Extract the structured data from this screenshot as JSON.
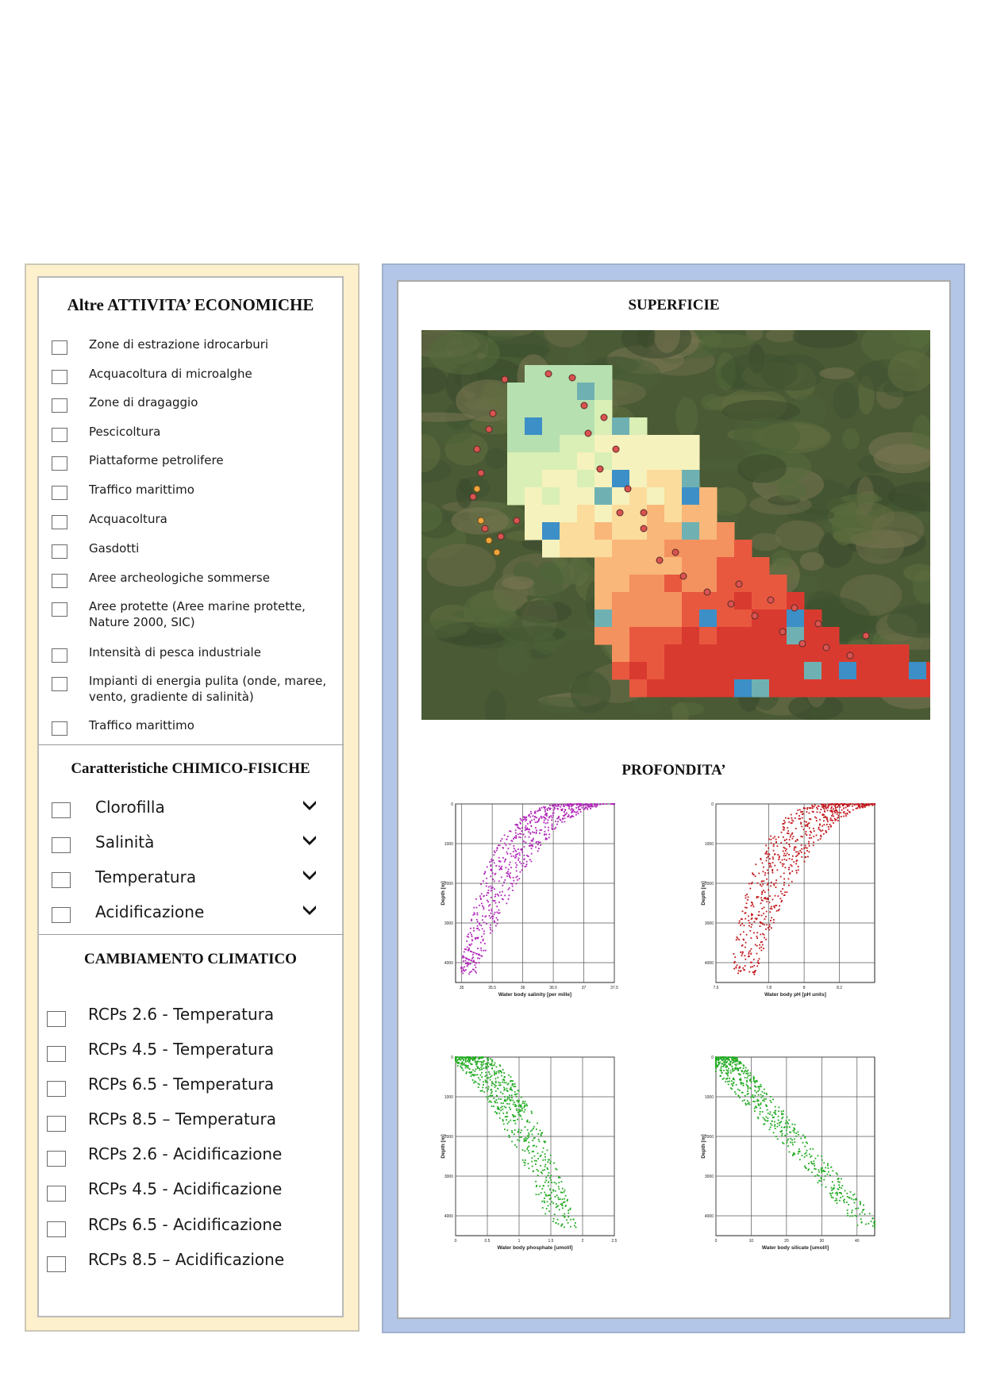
{
  "left": {
    "activities": {
      "title": "Altre ATTIVITA’ ECONOMICHE",
      "items": [
        {
          "label": "Zone di estrazione idrocarburi"
        },
        {
          "label": "Acquacoltura di microalghe"
        },
        {
          "label": "Zone di dragaggio"
        },
        {
          "label": "Pescicoltura"
        },
        {
          "label": "Piattaforme petrolifere"
        },
        {
          "label": "Traffico marittimo"
        },
        {
          "label": "Acquacoltura"
        },
        {
          "label": "Gasdotti"
        },
        {
          "label": "Aree archeologiche sommerse"
        },
        {
          "label": "Aree protette (Aree marine protette,",
          "label2": "Nature 2000, SIC)"
        },
        {
          "label": "Intensità di pesca industriale"
        },
        {
          "label": "Impianti di energia pulita (onde, maree,",
          "label2": "vento, gradiente di salinità)"
        },
        {
          "label": "Traffico marittimo"
        }
      ]
    },
    "chemphys": {
      "title": "Caratteristiche CHIMICO-FISICHE",
      "items": [
        {
          "label": "Clorofilla"
        },
        {
          "label": "Salinità"
        },
        {
          "label": "Temperatura"
        },
        {
          "label": "Acidificazione"
        }
      ]
    },
    "climate": {
      "title": "CAMBIAMENTO CLIMATICO",
      "items": [
        {
          "label": "RCPs 2.6 - Temperatura"
        },
        {
          "label": "RCPs 4.5 - Temperatura"
        },
        {
          "label": "RCPs 6.5 - Temperatura"
        },
        {
          "label": "RCPs 8.5 – Temperatura"
        },
        {
          "label": "RCPs 2.6 - Acidificazione"
        },
        {
          "label": "RCPs 4.5 - Acidificazione"
        },
        {
          "label": "RCPs 6.5 - Acidificazione"
        },
        {
          "label": "RCPs 8.5 – Acidificazione"
        }
      ]
    }
  },
  "right": {
    "surface_title": "SUPERFICIE",
    "depth_title": "PROFONDITA’"
  },
  "chart_data": [
    {
      "type": "scatter",
      "xlabel": "Water body salinity [per mille]",
      "ylabel": "Depth [m]",
      "color": "#b026b8",
      "x_ticks": [
        "35",
        "35.5",
        "36",
        "36.5",
        "37",
        "37.5"
      ],
      "y_ticks": [
        "0",
        "1000",
        "2000",
        "3000",
        "4000"
      ],
      "xlim": [
        34.9,
        37.5
      ],
      "ylim": [
        0,
        4500
      ],
      "note_points": "dense cluster near surface at 36.5–37.2, tail toward 35 at depth"
    },
    {
      "type": "scatter",
      "xlabel": "Water body pH [pH units]",
      "ylabel": "Depth [m]",
      "color": "#c0171c",
      "x_ticks": [
        "7.5",
        "7.8",
        "8",
        "8.2"
      ],
      "y_ticks": [
        "0",
        "1000",
        "2000",
        "3000",
        "4000"
      ],
      "xlim": [
        7.5,
        8.4
      ],
      "ylim": [
        0,
        4500
      ]
    },
    {
      "type": "scatter",
      "xlabel": "Water body phosphate [umol/l]",
      "ylabel": "Depth [m]",
      "color": "#22aa22",
      "x_ticks": [
        "0",
        "0.5",
        "1",
        "1.5",
        "2",
        "2.5"
      ],
      "y_ticks": [
        "0",
        "1000",
        "2000",
        "3000",
        "4000"
      ],
      "xlim": [
        0,
        2.5
      ],
      "ylim": [
        0,
        4500
      ]
    },
    {
      "type": "scatter",
      "xlabel": "Water body silicate [umol/l]",
      "ylabel": "Depth [m]",
      "color": "#22aa22",
      "x_ticks": [
        "0",
        "10",
        "20",
        "30",
        "40"
      ],
      "y_ticks": [
        "0",
        "1000",
        "2000",
        "3000",
        "4000"
      ],
      "xlim": [
        0,
        45
      ],
      "ylim": [
        0,
        4500
      ]
    }
  ]
}
